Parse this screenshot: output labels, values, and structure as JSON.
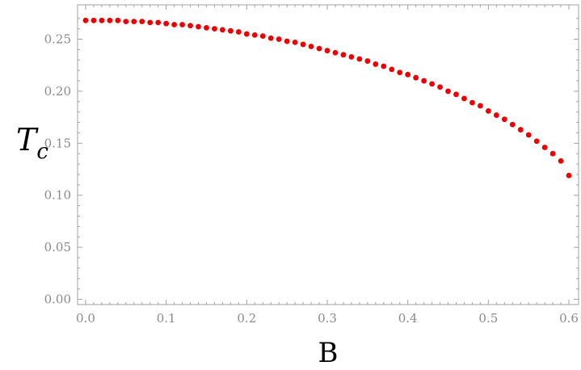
{
  "chart_data": {
    "type": "scatter",
    "xlabel": "B",
    "ylabel_main": "T",
    "ylabel_sub": "c",
    "xlim": [
      -0.01,
      0.612
    ],
    "ylim": [
      -0.005,
      0.283
    ],
    "x_ticks": [
      {
        "value": 0.0,
        "label": "0.0"
      },
      {
        "value": 0.1,
        "label": "0.1"
      },
      {
        "value": 0.2,
        "label": "0.2"
      },
      {
        "value": 0.3,
        "label": "0.3"
      },
      {
        "value": 0.4,
        "label": "0.4"
      },
      {
        "value": 0.5,
        "label": "0.5"
      },
      {
        "value": 0.6,
        "label": "0.6"
      }
    ],
    "y_ticks": [
      {
        "value": 0.0,
        "label": "0.00"
      },
      {
        "value": 0.05,
        "label": "0.05"
      },
      {
        "value": 0.1,
        "label": "0.10"
      },
      {
        "value": 0.15,
        "label": "0.15"
      },
      {
        "value": 0.2,
        "label": "0.20"
      },
      {
        "value": 0.25,
        "label": "0.25"
      }
    ],
    "marker_color": "#ee0000",
    "frame_color": "#a0a0a0",
    "grid": false,
    "series": [
      {
        "x": [
          0.0,
          0.01,
          0.02,
          0.03,
          0.04,
          0.05,
          0.06,
          0.07,
          0.08,
          0.09,
          0.1,
          0.11,
          0.12,
          0.13,
          0.14,
          0.15,
          0.16,
          0.17,
          0.18,
          0.19,
          0.2,
          0.21,
          0.22,
          0.23,
          0.24,
          0.25,
          0.26,
          0.27,
          0.28,
          0.29,
          0.3,
          0.31,
          0.32,
          0.33,
          0.34,
          0.35,
          0.36,
          0.37,
          0.38,
          0.39,
          0.4,
          0.41,
          0.42,
          0.43,
          0.44,
          0.45,
          0.46,
          0.47,
          0.48,
          0.49,
          0.5,
          0.51,
          0.52,
          0.53,
          0.54,
          0.55,
          0.56,
          0.57,
          0.58,
          0.59,
          0.6
        ],
        "y": [
          0.268,
          0.268,
          0.268,
          0.268,
          0.268,
          0.267,
          0.267,
          0.267,
          0.266,
          0.266,
          0.265,
          0.264,
          0.264,
          0.263,
          0.262,
          0.261,
          0.26,
          0.259,
          0.258,
          0.257,
          0.255,
          0.254,
          0.253,
          0.251,
          0.25,
          0.248,
          0.247,
          0.245,
          0.243,
          0.241,
          0.239,
          0.237,
          0.235,
          0.233,
          0.231,
          0.229,
          0.226,
          0.224,
          0.221,
          0.218,
          0.216,
          0.213,
          0.21,
          0.207,
          0.204,
          0.2,
          0.197,
          0.193,
          0.189,
          0.186,
          0.181,
          0.177,
          0.173,
          0.168,
          0.163,
          0.158,
          0.152,
          0.146,
          0.14,
          0.133,
          0.119
        ]
      }
    ]
  }
}
